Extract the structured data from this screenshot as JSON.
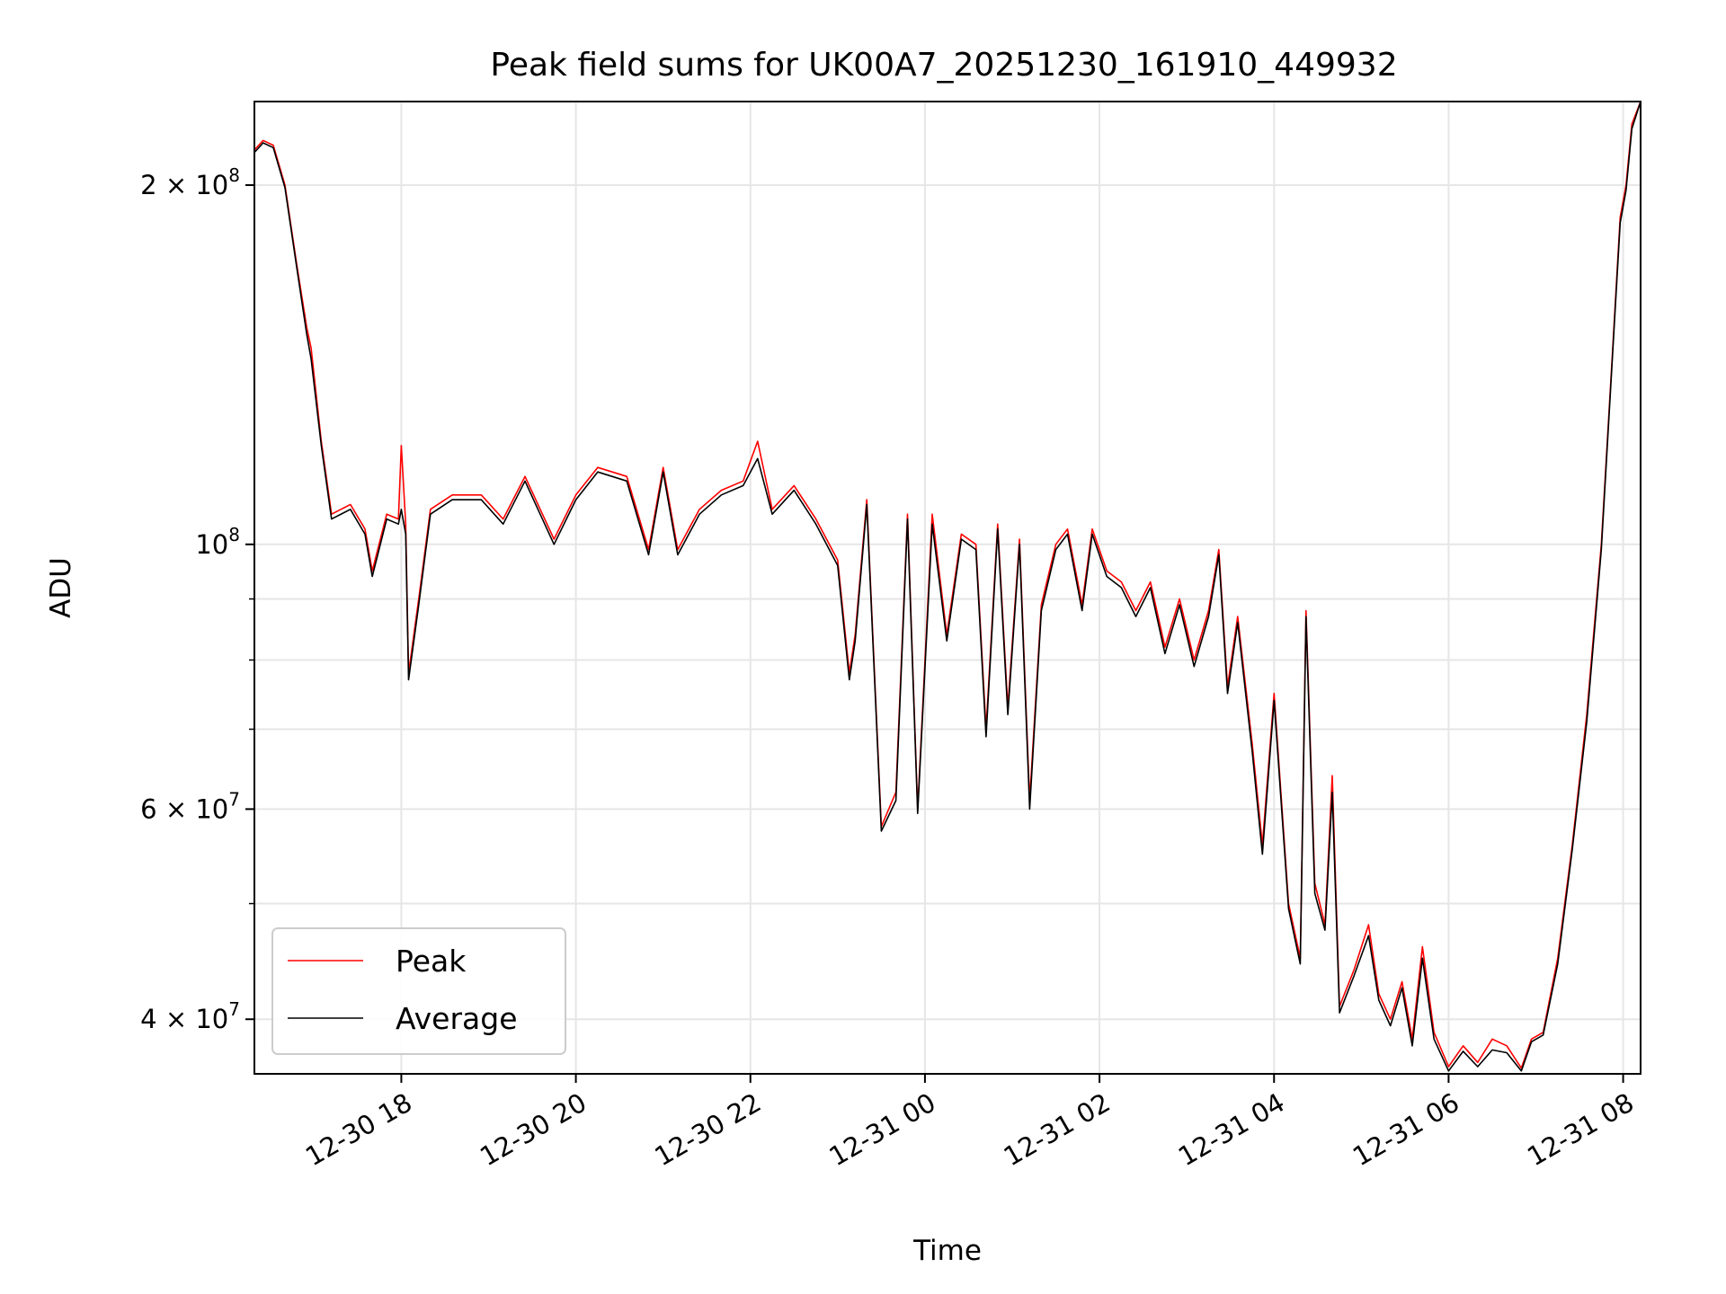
{
  "chart_data": {
    "type": "line",
    "title": "Peak field sums for UK00A7_20251230_161910_449932",
    "xlabel": "Time",
    "ylabel": "ADU",
    "yscale": "log",
    "grid": true,
    "legend_position": "lower-left",
    "xlim": [
      "2025-12-30 16:19",
      "2025-12-31 08:12"
    ],
    "ylim": [
      36000000,
      235000000
    ],
    "x_ticks": [
      {
        "t": "2025-12-30 18:00",
        "label": "12-30 18"
      },
      {
        "t": "2025-12-30 20:00",
        "label": "12-30 20"
      },
      {
        "t": "2025-12-30 22:00",
        "label": "12-30 22"
      },
      {
        "t": "2025-12-31 00:00",
        "label": "12-31 00"
      },
      {
        "t": "2025-12-31 02:00",
        "label": "12-31 02"
      },
      {
        "t": "2025-12-31 04:00",
        "label": "12-31 04"
      },
      {
        "t": "2025-12-31 06:00",
        "label": "12-31 06"
      },
      {
        "t": "2025-12-31 08:00",
        "label": "12-31 08"
      }
    ],
    "y_major_ticks": [
      {
        "value": 40000000,
        "mantissa": "4",
        "exp": "7"
      },
      {
        "value": 60000000,
        "mantissa": "6",
        "exp": "7"
      },
      {
        "value": 100000000,
        "mantissa": "",
        "exp": "8"
      },
      {
        "value": 200000000,
        "mantissa": "2",
        "exp": "8"
      }
    ],
    "y_minor_ticks": [
      50000000,
      70000000,
      80000000,
      90000000
    ],
    "series": [
      {
        "name": "Peak",
        "color": "#ff0000",
        "points": [
          [
            "2025-12-30 16:19",
            214000000
          ],
          [
            "2025-12-30 16:25",
            218000000
          ],
          [
            "2025-12-30 16:32",
            216000000
          ],
          [
            "2025-12-30 16:40",
            200000000
          ],
          [
            "2025-12-30 16:48",
            172000000
          ],
          [
            "2025-12-30 16:55",
            152000000
          ],
          [
            "2025-12-30 16:58",
            146000000
          ],
          [
            "2025-12-30 17:05",
            122000000
          ],
          [
            "2025-12-30 17:12",
            106000000
          ],
          [
            "2025-12-30 17:25",
            108000000
          ],
          [
            "2025-12-30 17:35",
            103000000
          ],
          [
            "2025-12-30 17:40",
            95000000
          ],
          [
            "2025-12-30 17:50",
            106000000
          ],
          [
            "2025-12-30 17:58",
            105000000
          ],
          [
            "2025-12-30 18:00",
            121000000
          ],
          [
            "2025-12-30 18:03",
            104000000
          ],
          [
            "2025-12-30 18:05",
            78000000
          ],
          [
            "2025-12-30 18:12",
            90000000
          ],
          [
            "2025-12-30 18:20",
            107000000
          ],
          [
            "2025-12-30 18:35",
            110000000
          ],
          [
            "2025-12-30 18:55",
            110000000
          ],
          [
            "2025-12-30 19:10",
            105000000
          ],
          [
            "2025-12-30 19:25",
            114000000
          ],
          [
            "2025-12-30 19:45",
            101000000
          ],
          [
            "2025-12-30 20:00",
            110000000
          ],
          [
            "2025-12-30 20:15",
            116000000
          ],
          [
            "2025-12-30 20:35",
            114000000
          ],
          [
            "2025-12-30 20:50",
            99000000
          ],
          [
            "2025-12-30 21:00",
            116000000
          ],
          [
            "2025-12-30 21:10",
            99000000
          ],
          [
            "2025-12-30 21:25",
            107000000
          ],
          [
            "2025-12-30 21:40",
            111000000
          ],
          [
            "2025-12-30 21:55",
            113000000
          ],
          [
            "2025-12-30 22:05",
            122000000
          ],
          [
            "2025-12-30 22:15",
            107000000
          ],
          [
            "2025-12-30 22:30",
            112000000
          ],
          [
            "2025-12-30 22:45",
            105000000
          ],
          [
            "2025-12-30 23:00",
            97000000
          ],
          [
            "2025-12-30 23:08",
            78000000
          ],
          [
            "2025-12-30 23:12",
            84000000
          ],
          [
            "2025-12-30 23:20",
            109000000
          ],
          [
            "2025-12-30 23:30",
            58000000
          ],
          [
            "2025-12-30 23:40",
            62000000
          ],
          [
            "2025-12-30 23:48",
            106000000
          ],
          [
            "2025-12-30 23:55",
            60000000
          ],
          [
            "2025-12-31 00:05",
            106000000
          ],
          [
            "2025-12-31 00:15",
            84000000
          ],
          [
            "2025-12-31 00:25",
            102000000
          ],
          [
            "2025-12-31 00:35",
            100000000
          ],
          [
            "2025-12-31 00:42",
            70000000
          ],
          [
            "2025-12-31 00:50",
            104000000
          ],
          [
            "2025-12-31 00:57",
            73000000
          ],
          [
            "2025-12-31 01:05",
            101000000
          ],
          [
            "2025-12-31 01:12",
            61000000
          ],
          [
            "2025-12-31 01:20",
            89000000
          ],
          [
            "2025-12-31 01:30",
            100000000
          ],
          [
            "2025-12-31 01:38",
            103000000
          ],
          [
            "2025-12-31 01:48",
            89000000
          ],
          [
            "2025-12-31 01:55",
            103000000
          ],
          [
            "2025-12-31 02:05",
            95000000
          ],
          [
            "2025-12-31 02:15",
            93000000
          ],
          [
            "2025-12-31 02:25",
            88000000
          ],
          [
            "2025-12-31 02:35",
            93000000
          ],
          [
            "2025-12-31 02:45",
            82000000
          ],
          [
            "2025-12-31 02:55",
            90000000
          ],
          [
            "2025-12-31 03:05",
            80000000
          ],
          [
            "2025-12-31 03:15",
            88000000
          ],
          [
            "2025-12-31 03:22",
            99000000
          ],
          [
            "2025-12-31 03:28",
            76000000
          ],
          [
            "2025-12-31 03:35",
            87000000
          ],
          [
            "2025-12-31 03:45",
            68000000
          ],
          [
            "2025-12-31 03:52",
            56000000
          ],
          [
            "2025-12-31 04:00",
            75000000
          ],
          [
            "2025-12-31 04:10",
            50000000
          ],
          [
            "2025-12-31 04:18",
            45000000
          ],
          [
            "2025-12-31 04:22",
            88000000
          ],
          [
            "2025-12-31 04:28",
            52000000
          ],
          [
            "2025-12-31 04:35",
            48000000
          ],
          [
            "2025-12-31 04:40",
            64000000
          ],
          [
            "2025-12-31 04:45",
            41000000
          ],
          [
            "2025-12-31 04:55",
            44000000
          ],
          [
            "2025-12-31 05:05",
            48000000
          ],
          [
            "2025-12-31 05:12",
            42000000
          ],
          [
            "2025-12-31 05:20",
            40000000
          ],
          [
            "2025-12-31 05:28",
            43000000
          ],
          [
            "2025-12-31 05:35",
            38500000
          ],
          [
            "2025-12-31 05:42",
            46000000
          ],
          [
            "2025-12-31 05:50",
            39000000
          ],
          [
            "2025-12-31 06:00",
            36500000
          ],
          [
            "2025-12-31 06:10",
            38000000
          ],
          [
            "2025-12-31 06:20",
            36800000
          ],
          [
            "2025-12-31 06:30",
            38500000
          ],
          [
            "2025-12-31 06:40",
            38000000
          ],
          [
            "2025-12-31 06:50",
            36400000
          ],
          [
            "2025-12-31 06:57",
            38500000
          ],
          [
            "2025-12-31 07:05",
            39000000
          ],
          [
            "2025-12-31 07:15",
            45000000
          ],
          [
            "2025-12-31 07:25",
            56000000
          ],
          [
            "2025-12-31 07:35",
            72000000
          ],
          [
            "2025-12-31 07:45",
            100000000
          ],
          [
            "2025-12-31 07:52",
            140000000
          ],
          [
            "2025-12-31 07:58",
            188000000
          ],
          [
            "2025-12-31 08:02",
            200000000
          ],
          [
            "2025-12-31 08:06",
            225000000
          ],
          [
            "2025-12-31 08:12",
            235000000
          ]
        ]
      },
      {
        "name": "Average",
        "color": "#000000",
        "points": [
          [
            "2025-12-30 16:19",
            213000000
          ],
          [
            "2025-12-30 16:25",
            217000000
          ],
          [
            "2025-12-30 16:32",
            215000000
          ],
          [
            "2025-12-30 16:40",
            199000000
          ],
          [
            "2025-12-30 16:48",
            171000000
          ],
          [
            "2025-12-30 16:55",
            150000000
          ],
          [
            "2025-12-30 16:58",
            143000000
          ],
          [
            "2025-12-30 17:05",
            121000000
          ],
          [
            "2025-12-30 17:12",
            105000000
          ],
          [
            "2025-12-30 17:25",
            107000000
          ],
          [
            "2025-12-30 17:35",
            102000000
          ],
          [
            "2025-12-30 17:40",
            94000000
          ],
          [
            "2025-12-30 17:50",
            105000000
          ],
          [
            "2025-12-30 17:58",
            104000000
          ],
          [
            "2025-12-30 18:00",
            107000000
          ],
          [
            "2025-12-30 18:03",
            102000000
          ],
          [
            "2025-12-30 18:05",
            77000000
          ],
          [
            "2025-12-30 18:12",
            89000000
          ],
          [
            "2025-12-30 18:20",
            106000000
          ],
          [
            "2025-12-30 18:35",
            109000000
          ],
          [
            "2025-12-30 18:55",
            109000000
          ],
          [
            "2025-12-30 19:10",
            104000000
          ],
          [
            "2025-12-30 19:25",
            113000000
          ],
          [
            "2025-12-30 19:45",
            100000000
          ],
          [
            "2025-12-30 20:00",
            109000000
          ],
          [
            "2025-12-30 20:15",
            115000000
          ],
          [
            "2025-12-30 20:35",
            113000000
          ],
          [
            "2025-12-30 20:50",
            98000000
          ],
          [
            "2025-12-30 21:00",
            115000000
          ],
          [
            "2025-12-30 21:10",
            98000000
          ],
          [
            "2025-12-30 21:25",
            106000000
          ],
          [
            "2025-12-30 21:40",
            110000000
          ],
          [
            "2025-12-30 21:55",
            112000000
          ],
          [
            "2025-12-30 22:05",
            118000000
          ],
          [
            "2025-12-30 22:15",
            106000000
          ],
          [
            "2025-12-30 22:30",
            111000000
          ],
          [
            "2025-12-30 22:45",
            104000000
          ],
          [
            "2025-12-30 23:00",
            96000000
          ],
          [
            "2025-12-30 23:08",
            77000000
          ],
          [
            "2025-12-30 23:12",
            83000000
          ],
          [
            "2025-12-30 23:20",
            108000000
          ],
          [
            "2025-12-30 23:30",
            57500000
          ],
          [
            "2025-12-30 23:40",
            61000000
          ],
          [
            "2025-12-30 23:48",
            105000000
          ],
          [
            "2025-12-30 23:55",
            59500000
          ],
          [
            "2025-12-31 00:05",
            104000000
          ],
          [
            "2025-12-31 00:15",
            83000000
          ],
          [
            "2025-12-31 00:25",
            101000000
          ],
          [
            "2025-12-31 00:35",
            99000000
          ],
          [
            "2025-12-31 00:42",
            69000000
          ],
          [
            "2025-12-31 00:50",
            103000000
          ],
          [
            "2025-12-31 00:57",
            72000000
          ],
          [
            "2025-12-31 01:05",
            100000000
          ],
          [
            "2025-12-31 01:12",
            60000000
          ],
          [
            "2025-12-31 01:20",
            88000000
          ],
          [
            "2025-12-31 01:30",
            99000000
          ],
          [
            "2025-12-31 01:38",
            102000000
          ],
          [
            "2025-12-31 01:48",
            88000000
          ],
          [
            "2025-12-31 01:55",
            102000000
          ],
          [
            "2025-12-31 02:05",
            94000000
          ],
          [
            "2025-12-31 02:15",
            92000000
          ],
          [
            "2025-12-31 02:25",
            87000000
          ],
          [
            "2025-12-31 02:35",
            92000000
          ],
          [
            "2025-12-31 02:45",
            81000000
          ],
          [
            "2025-12-31 02:55",
            89000000
          ],
          [
            "2025-12-31 03:05",
            79000000
          ],
          [
            "2025-12-31 03:15",
            87000000
          ],
          [
            "2025-12-31 03:22",
            98000000
          ],
          [
            "2025-12-31 03:28",
            75000000
          ],
          [
            "2025-12-31 03:35",
            86000000
          ],
          [
            "2025-12-31 03:45",
            67000000
          ],
          [
            "2025-12-31 03:52",
            55000000
          ],
          [
            "2025-12-31 04:00",
            74000000
          ],
          [
            "2025-12-31 04:10",
            49500000
          ],
          [
            "2025-12-31 04:18",
            44500000
          ],
          [
            "2025-12-31 04:22",
            87000000
          ],
          [
            "2025-12-31 04:28",
            51000000
          ],
          [
            "2025-12-31 04:35",
            47500000
          ],
          [
            "2025-12-31 04:40",
            62000000
          ],
          [
            "2025-12-31 04:45",
            40500000
          ],
          [
            "2025-12-31 04:55",
            43500000
          ],
          [
            "2025-12-31 05:05",
            47000000
          ],
          [
            "2025-12-31 05:12",
            41500000
          ],
          [
            "2025-12-31 05:20",
            39500000
          ],
          [
            "2025-12-31 05:28",
            42500000
          ],
          [
            "2025-12-31 05:35",
            38000000
          ],
          [
            "2025-12-31 05:42",
            45000000
          ],
          [
            "2025-12-31 05:50",
            38500000
          ],
          [
            "2025-12-31 06:00",
            36200000
          ],
          [
            "2025-12-31 06:10",
            37600000
          ],
          [
            "2025-12-31 06:20",
            36500000
          ],
          [
            "2025-12-31 06:30",
            37700000
          ],
          [
            "2025-12-31 06:40",
            37500000
          ],
          [
            "2025-12-31 06:50",
            36200000
          ],
          [
            "2025-12-31 06:57",
            38300000
          ],
          [
            "2025-12-31 07:05",
            38800000
          ],
          [
            "2025-12-31 07:15",
            44500000
          ],
          [
            "2025-12-31 07:25",
            55500000
          ],
          [
            "2025-12-31 07:35",
            71000000
          ],
          [
            "2025-12-31 07:45",
            99000000
          ],
          [
            "2025-12-31 07:52",
            139000000
          ],
          [
            "2025-12-31 07:58",
            186000000
          ],
          [
            "2025-12-31 08:02",
            198000000
          ],
          [
            "2025-12-31 08:06",
            223000000
          ],
          [
            "2025-12-31 08:12",
            235000000
          ]
        ]
      }
    ]
  }
}
